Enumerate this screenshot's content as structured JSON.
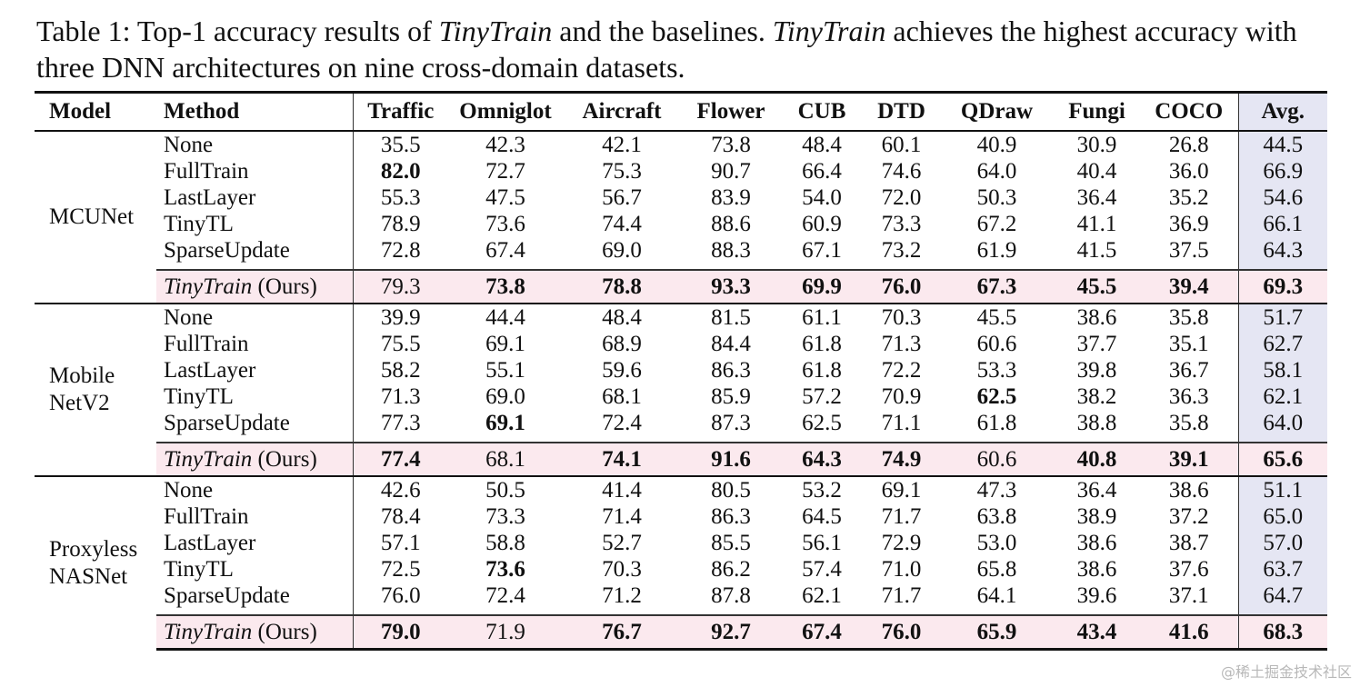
{
  "caption": {
    "label": "Table 1: Top-1 accuracy results of ",
    "name1": "TinyTrain",
    "mid": " and the baselines. ",
    "name2": "TinyTrain",
    "rest": " achieves the highest accuracy with three DNN architectures on nine cross-domain datasets."
  },
  "table": {
    "headers": [
      "Model",
      "Method",
      "Traffic",
      "Omniglot",
      "Aircraft",
      "Flower",
      "CUB",
      "DTD",
      "QDraw",
      "Fungi",
      "COCO",
      "Avg."
    ],
    "groups": [
      {
        "model_line1": "MCUNet",
        "model_line2": "",
        "rows": [
          {
            "method": "None",
            "values": [
              "35.5",
              "42.3",
              "42.1",
              "73.8",
              "48.4",
              "60.1",
              "40.9",
              "30.9",
              "26.8",
              "44.5"
            ],
            "bold": []
          },
          {
            "method": "FullTrain",
            "values": [
              "82.0",
              "72.7",
              "75.3",
              "90.7",
              "66.4",
              "74.6",
              "64.0",
              "40.4",
              "36.0",
              "66.9"
            ],
            "bold": [
              0
            ]
          },
          {
            "method": "LastLayer",
            "values": [
              "55.3",
              "47.5",
              "56.7",
              "83.9",
              "54.0",
              "72.0",
              "50.3",
              "36.4",
              "35.2",
              "54.6"
            ],
            "bold": []
          },
          {
            "method": "TinyTL",
            "values": [
              "78.9",
              "73.6",
              "74.4",
              "88.6",
              "60.9",
              "73.3",
              "67.2",
              "41.1",
              "36.9",
              "66.1"
            ],
            "bold": []
          },
          {
            "method": "SparseUpdate",
            "values": [
              "72.8",
              "67.4",
              "69.0",
              "88.3",
              "67.1",
              "73.2",
              "61.9",
              "41.5",
              "37.5",
              "64.3"
            ],
            "bold": []
          }
        ],
        "ours": {
          "method_em": "TinyTrain",
          "method_rest": " (Ours)",
          "values": [
            "79.3",
            "73.8",
            "78.8",
            "93.3",
            "69.9",
            "76.0",
            "67.3",
            "45.5",
            "39.4",
            "69.3"
          ],
          "bold": [
            1,
            2,
            3,
            4,
            5,
            6,
            7,
            8,
            9
          ]
        }
      },
      {
        "model_line1": "Mobile",
        "model_line2": "NetV2",
        "rows": [
          {
            "method": "None",
            "values": [
              "39.9",
              "44.4",
              "48.4",
              "81.5",
              "61.1",
              "70.3",
              "45.5",
              "38.6",
              "35.8",
              "51.7"
            ],
            "bold": []
          },
          {
            "method": "FullTrain",
            "values": [
              "75.5",
              "69.1",
              "68.9",
              "84.4",
              "61.8",
              "71.3",
              "60.6",
              "37.7",
              "35.1",
              "62.7"
            ],
            "bold": []
          },
          {
            "method": "LastLayer",
            "values": [
              "58.2",
              "55.1",
              "59.6",
              "86.3",
              "61.8",
              "72.2",
              "53.3",
              "39.8",
              "36.7",
              "58.1"
            ],
            "bold": []
          },
          {
            "method": "TinyTL",
            "values": [
              "71.3",
              "69.0",
              "68.1",
              "85.9",
              "57.2",
              "70.9",
              "62.5",
              "38.2",
              "36.3",
              "62.1"
            ],
            "bold": [
              6
            ]
          },
          {
            "method": "SparseUpdate",
            "values": [
              "77.3",
              "69.1",
              "72.4",
              "87.3",
              "62.5",
              "71.1",
              "61.8",
              "38.8",
              "35.8",
              "64.0"
            ],
            "bold": [
              1
            ]
          }
        ],
        "ours": {
          "method_em": "TinyTrain",
          "method_rest": " (Ours)",
          "values": [
            "77.4",
            "68.1",
            "74.1",
            "91.6",
            "64.3",
            "74.9",
            "60.6",
            "40.8",
            "39.1",
            "65.6"
          ],
          "bold": [
            0,
            2,
            3,
            4,
            5,
            7,
            8,
            9
          ]
        }
      },
      {
        "model_line1": "Proxyless",
        "model_line2": "NASNet",
        "rows": [
          {
            "method": "None",
            "values": [
              "42.6",
              "50.5",
              "41.4",
              "80.5",
              "53.2",
              "69.1",
              "47.3",
              "36.4",
              "38.6",
              "51.1"
            ],
            "bold": []
          },
          {
            "method": "FullTrain",
            "values": [
              "78.4",
              "73.3",
              "71.4",
              "86.3",
              "64.5",
              "71.7",
              "63.8",
              "38.9",
              "37.2",
              "65.0"
            ],
            "bold": []
          },
          {
            "method": "LastLayer",
            "values": [
              "57.1",
              "58.8",
              "52.7",
              "85.5",
              "56.1",
              "72.9",
              "53.0",
              "38.6",
              "38.7",
              "57.0"
            ],
            "bold": []
          },
          {
            "method": "TinyTL",
            "values": [
              "72.5",
              "73.6",
              "70.3",
              "86.2",
              "57.4",
              "71.0",
              "65.8",
              "38.6",
              "37.6",
              "63.7"
            ],
            "bold": [
              1
            ]
          },
          {
            "method": "SparseUpdate",
            "values": [
              "76.0",
              "72.4",
              "71.2",
              "87.8",
              "62.1",
              "71.7",
              "64.1",
              "39.6",
              "37.1",
              "64.7"
            ],
            "bold": []
          }
        ],
        "ours": {
          "method_em": "TinyTrain",
          "method_rest": " (Ours)",
          "values": [
            "79.0",
            "71.9",
            "76.7",
            "92.7",
            "67.4",
            "76.0",
            "65.9",
            "43.4",
            "41.6",
            "68.3"
          ],
          "bold": [
            0,
            2,
            3,
            4,
            5,
            6,
            7,
            8,
            9
          ]
        }
      }
    ]
  },
  "watermark": "@稀土掘金技术社区"
}
